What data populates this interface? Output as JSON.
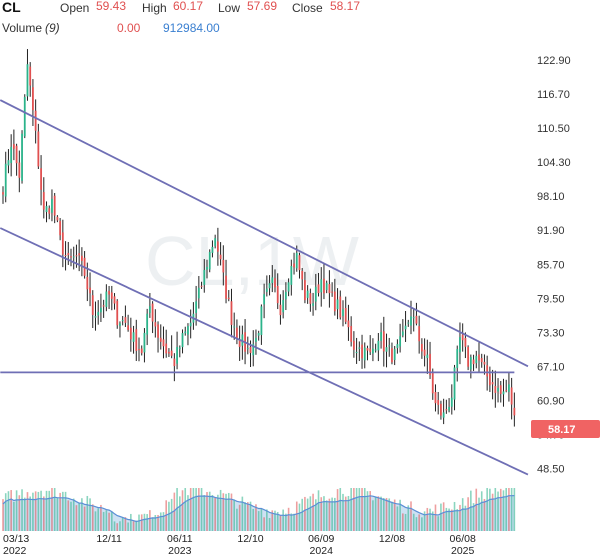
{
  "header": {
    "symbol": "CL",
    "open_label": "Open",
    "open_value": "59.43",
    "high_label": "High",
    "high_value": "60.17",
    "low_label": "Low",
    "low_value": "57.69",
    "close_label": "Close",
    "close_value": "58.17",
    "volume_label": "Volume",
    "volume_period": "(9)",
    "volume_value_1": "0.00",
    "volume_value_2": "912984.00"
  },
  "watermark": "CL,1W",
  "last_price": "58.17",
  "colors": {
    "up": "#2bb38a",
    "down": "#e05050",
    "wick": "#222222",
    "trendline": "#6f6fb5",
    "last_price_tag": "#f06363",
    "volume_area": "#bcd7ef",
    "volume_line": "#5b8fd6"
  },
  "chart_data": {
    "type": "candlestick",
    "interval": "1W",
    "y_ticks": [
      "122.90",
      "116.70",
      "110.50",
      "104.30",
      "98.10",
      "91.90",
      "85.70",
      "79.50",
      "73.30",
      "67.10",
      "60.90",
      "54.70",
      "48.50"
    ],
    "ylim": [
      45.4,
      126.0
    ],
    "x_ticks": [
      {
        "label": "03/13",
        "year": "2022",
        "index": 0
      },
      {
        "label": "12/11",
        "year": "",
        "index": 39
      },
      {
        "label": "06/11",
        "year": "2023",
        "index": 65
      },
      {
        "label": "12/10",
        "year": "",
        "index": 91
      },
      {
        "label": "06/09",
        "year": "2024",
        "index": 117
      },
      {
        "label": "12/08",
        "year": "",
        "index": 143
      },
      {
        "label": "06/08",
        "year": "2025",
        "index": 169
      }
    ],
    "anchors": [
      [
        0,
        100
      ],
      [
        3,
        108
      ],
      [
        6,
        102
      ],
      [
        9,
        122
      ],
      [
        12,
        109
      ],
      [
        15,
        95
      ],
      [
        18,
        97
      ],
      [
        21,
        90
      ],
      [
        24,
        86
      ],
      [
        27,
        87
      ],
      [
        30,
        84
      ],
      [
        33,
        77
      ],
      [
        36,
        78
      ],
      [
        39,
        80
      ],
      [
        42,
        76
      ],
      [
        45,
        75
      ],
      [
        48,
        72
      ],
      [
        51,
        70
      ],
      [
        54,
        78
      ],
      [
        57,
        73
      ],
      [
        60,
        70
      ],
      [
        63,
        68
      ],
      [
        66,
        72
      ],
      [
        69,
        75
      ],
      [
        72,
        80
      ],
      [
        75,
        86
      ],
      [
        78,
        91
      ],
      [
        81,
        83
      ],
      [
        84,
        76
      ],
      [
        87,
        72
      ],
      [
        90,
        70
      ],
      [
        93,
        72
      ],
      [
        96,
        79
      ],
      [
        99,
        82
      ],
      [
        102,
        78
      ],
      [
        105,
        84
      ],
      [
        108,
        87
      ],
      [
        111,
        80
      ],
      [
        114,
        79
      ],
      [
        117,
        83
      ],
      [
        120,
        80
      ],
      [
        123,
        78
      ],
      [
        126,
        75
      ],
      [
        129,
        71
      ],
      [
        132,
        70
      ],
      [
        135,
        69
      ],
      [
        138,
        73
      ],
      [
        141,
        70
      ],
      [
        144,
        69
      ],
      [
        147,
        72
      ],
      [
        150,
        77
      ],
      [
        153,
        72
      ],
      [
        156,
        68
      ],
      [
        159,
        60
      ],
      [
        162,
        58
      ],
      [
        165,
        62
      ],
      [
        168,
        72
      ],
      [
        171,
        68
      ],
      [
        174,
        69
      ],
      [
        177,
        66
      ],
      [
        180,
        64
      ],
      [
        183,
        62
      ],
      [
        186,
        63
      ],
      [
        188,
        58.17
      ]
    ],
    "trendlines": [
      {
        "x1": -1,
        "y1": 115.6,
        "x2": 193,
        "y2": 67.1
      },
      {
        "x1": -1,
        "y1": 92.3,
        "x2": 193,
        "y2": 47.4
      },
      {
        "x1": -1,
        "y1": 66.0,
        "x2": 188,
        "y2": 66.0
      }
    ],
    "legend": "none",
    "grid": false
  }
}
